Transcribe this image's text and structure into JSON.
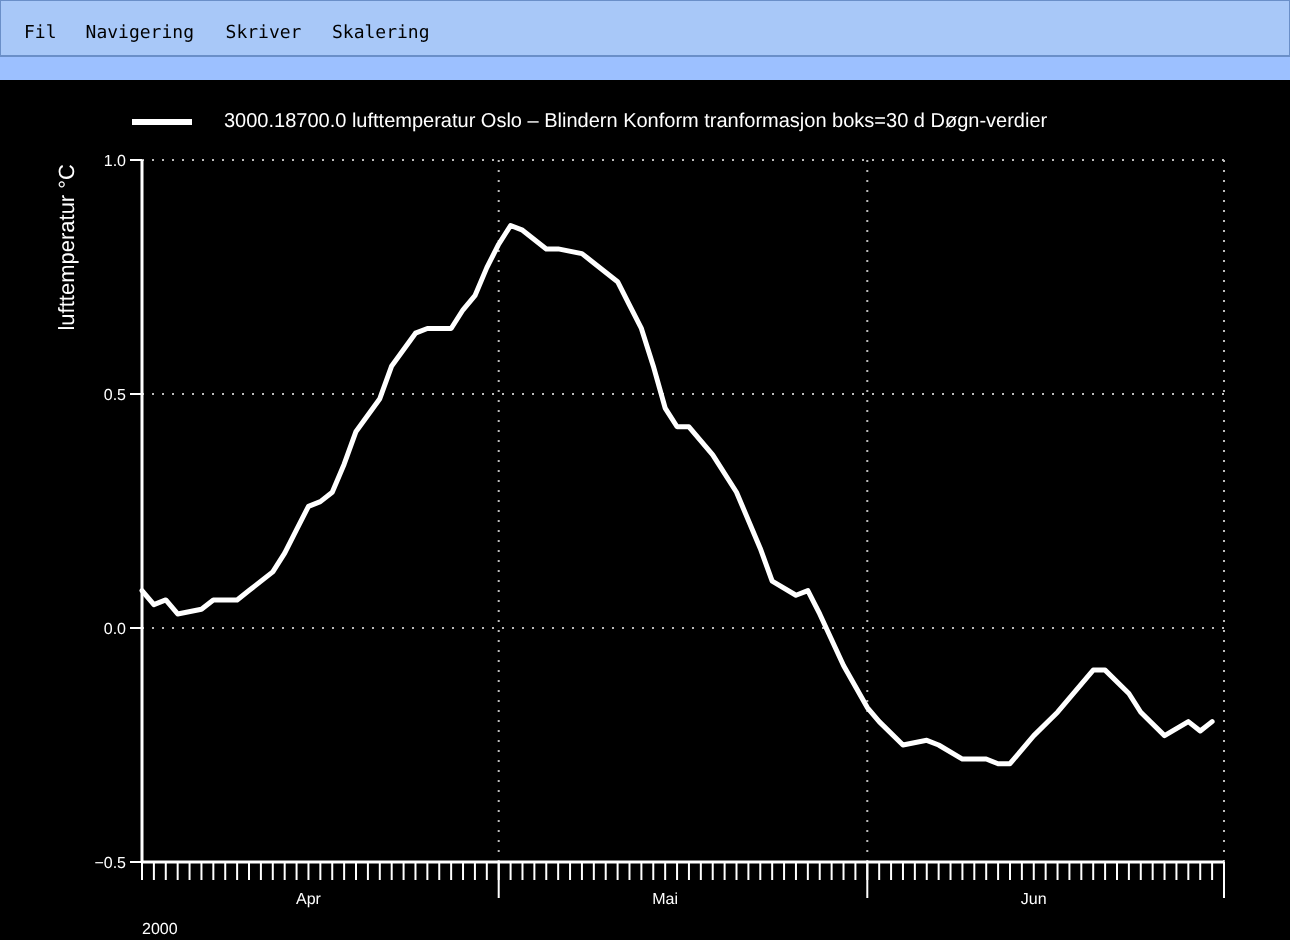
{
  "chart_data": {
    "type": "line",
    "ylabel": "lufttemperatur   °C",
    "xlabel": "2000",
    "annotations": [
      "Fil",
      "Navigering",
      "Skriver",
      "Skalering"
    ],
    "x": [
      "2000-04-01",
      "2000-04-02",
      "2000-04-03",
      "2000-04-04",
      "2000-04-06",
      "2000-04-07",
      "2000-04-09",
      "2000-04-10",
      "2000-04-12",
      "2000-04-13",
      "2000-04-14",
      "2000-04-15",
      "2000-04-16",
      "2000-04-17",
      "2000-04-18",
      "2000-04-19",
      "2000-04-21",
      "2000-04-22",
      "2000-04-24",
      "2000-04-25",
      "2000-04-27",
      "2000-04-28",
      "2000-04-29",
      "2000-04-30",
      "2000-05-01",
      "2000-05-02",
      "2000-05-03",
      "2000-05-05",
      "2000-05-06",
      "2000-05-08",
      "2000-05-09",
      "2000-05-11",
      "2000-05-12",
      "2000-05-13",
      "2000-05-14",
      "2000-05-15",
      "2000-05-16",
      "2000-05-17",
      "2000-05-19",
      "2000-05-21",
      "2000-05-23",
      "2000-05-24",
      "2000-05-26",
      "2000-05-27",
      "2000-05-28",
      "2000-05-30",
      "2000-06-01",
      "2000-06-02",
      "2000-06-04",
      "2000-06-06",
      "2000-06-07",
      "2000-06-09",
      "2000-06-11",
      "2000-06-12",
      "2000-06-13",
      "2000-06-15",
      "2000-06-17",
      "2000-06-19",
      "2000-06-20",
      "2000-06-21",
      "2000-06-23",
      "2000-06-24",
      "2000-06-26",
      "2000-06-28",
      "2000-06-29",
      "2000-06-30"
    ],
    "series": [
      {
        "name": "3000.18700.0  lufttemperatur  Oslo – Blindern Konform tranformasjon boks=30 d  Døgn-verdier",
        "color": "#ffffff",
        "values": [
          0.08,
          0.05,
          0.06,
          0.03,
          0.04,
          0.06,
          0.06,
          0.08,
          0.12,
          0.16,
          0.21,
          0.26,
          0.27,
          0.29,
          0.35,
          0.42,
          0.49,
          0.56,
          0.63,
          0.64,
          0.64,
          0.68,
          0.71,
          0.77,
          0.82,
          0.86,
          0.85,
          0.81,
          0.81,
          0.8,
          0.78,
          0.74,
          0.69,
          0.64,
          0.56,
          0.47,
          0.43,
          0.43,
          0.37,
          0.29,
          0.17,
          0.1,
          0.07,
          0.08,
          0.03,
          -0.08,
          -0.17,
          -0.2,
          -0.25,
          -0.24,
          -0.25,
          -0.28,
          -0.28,
          -0.29,
          -0.29,
          -0.23,
          -0.18,
          -0.12,
          -0.09,
          -0.09,
          -0.14,
          -0.18,
          -0.23,
          -0.2,
          -0.22,
          -0.2
        ]
      }
    ],
    "xlim": [
      "2000-04-01",
      "2000-07-01"
    ],
    "xticks": [
      {
        "value": "2000-04-15",
        "label": "Apr"
      },
      {
        "value": "2000-05-01",
        "label": null
      },
      {
        "value": "2000-05-15",
        "label": "Mai"
      },
      {
        "value": "2000-06-01",
        "label": null
      },
      {
        "value": "2000-06-15",
        "label": "Jun"
      },
      {
        "value": "2000-07-01",
        "label": null
      }
    ],
    "ylim": [
      -0.5,
      1.0
    ],
    "yticks": [
      {
        "value": -0.5,
        "label": "−0.5"
      },
      {
        "value": 0,
        "label": "0.0"
      },
      {
        "value": 0.5,
        "label": "0.5"
      },
      {
        "value": 1.0,
        "label": "1.0"
      }
    ],
    "grid": true,
    "legend": "top",
    "line_style": "solid",
    "marker": "none"
  }
}
